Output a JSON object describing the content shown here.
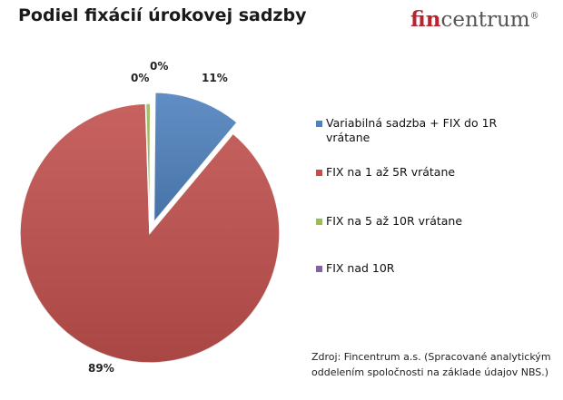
{
  "title": "Podiel fixácií úrokovej sadzby",
  "logo": {
    "accent_text": "fin",
    "rest_text": "centrum",
    "mark": "®"
  },
  "source": "Zdroj: Fincentrum a.s. (Spracované analytickým oddelením spoločnosti na základe údajov NBS.)",
  "chart_data": {
    "type": "pie",
    "title": "Podiel fixácií úrokovej sadzby",
    "legend_position": "right",
    "slices": [
      {
        "name": "Variabilná sadzba + FIX do 1R vrátane",
        "value": 11,
        "label": "11%",
        "color": "#4f81bd"
      },
      {
        "name": "FIX na 1 až 5R vrátane",
        "value": 89,
        "label": "89%",
        "color": "#c0504d"
      },
      {
        "name": "FIX na 5 až 10R vrátane",
        "value": 0.6,
        "label": "0%",
        "color": "#9bbb59"
      },
      {
        "name": "FIX nad 10R",
        "value": 0.05,
        "label": "0%",
        "color": "#8064a2"
      }
    ]
  }
}
